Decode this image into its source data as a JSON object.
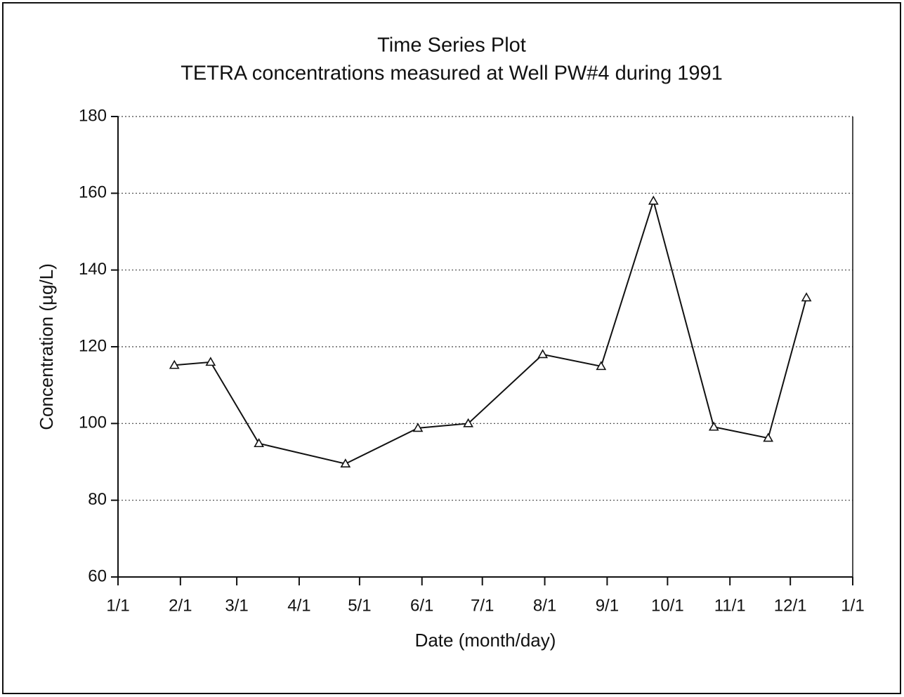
{
  "chart_data": {
    "type": "line",
    "title": "Time Series Plot",
    "subtitle": "TETRA concentrations measured at Well PW#4 during 1991",
    "x_label": "Date (month/day)",
    "y_label": "Concentration (µg/L)",
    "x": [
      28,
      46,
      70,
      113,
      149,
      174,
      211,
      240,
      266,
      296,
      323,
      342
    ],
    "series": [
      {
        "name": "TETRA",
        "color": "#111111",
        "values": [
          115.2,
          116,
          94.8,
          89.5,
          98.8,
          100,
          118,
          114.9,
          158,
          99.1,
          96.2,
          132.8
        ]
      }
    ],
    "xlim": [
      0,
      365
    ],
    "xticks": [
      {
        "value": 0,
        "label": "1/1"
      },
      {
        "value": 31,
        "label": "2/1"
      },
      {
        "value": 59,
        "label": "3/1"
      },
      {
        "value": 90,
        "label": "4/1"
      },
      {
        "value": 120,
        "label": "5/1"
      },
      {
        "value": 151,
        "label": "6/1"
      },
      {
        "value": 181,
        "label": "7/1"
      },
      {
        "value": 212,
        "label": "8/1"
      },
      {
        "value": 243,
        "label": "9/1"
      },
      {
        "value": 273,
        "label": "10/1"
      },
      {
        "value": 304,
        "label": "11/1"
      },
      {
        "value": 334,
        "label": "12/1"
      },
      {
        "value": 365,
        "label": "1/1"
      }
    ],
    "ylim": [
      60,
      180
    ],
    "yticks": [
      60,
      80,
      100,
      120,
      140,
      160,
      180
    ],
    "grid": true
  }
}
